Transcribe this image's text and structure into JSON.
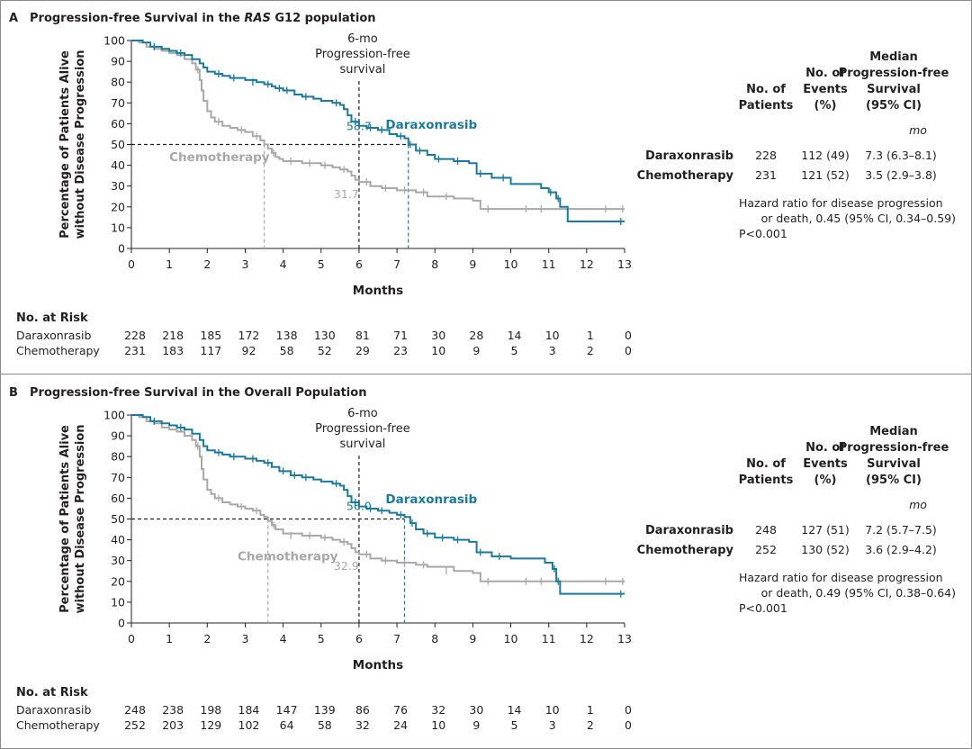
{
  "colors": {
    "daraxonrasib": "#1a7a9e",
    "chemotherapy": "#a8a8a8",
    "reference": "#231f20"
  },
  "chart_data": [
    {
      "type": "line",
      "letter": "A",
      "title_pre": "Progression-free Survival in the ",
      "title_ital": "RAS",
      "title_post": " G12 population",
      "ylabel_line1": "Percentage of Patients Alive",
      "ylabel_line2": "without Disease Progression",
      "xlabel": "Months",
      "xlim": [
        0,
        13
      ],
      "ylim": [
        0,
        100
      ],
      "xticks": [
        "0",
        "1",
        "2",
        "3",
        "4",
        "5",
        "6",
        "7",
        "8",
        "9",
        "10",
        "11",
        "12",
        "13"
      ],
      "yticks": [
        "0",
        "10",
        "20",
        "30",
        "40",
        "50",
        "60",
        "70",
        "80",
        "90",
        "100"
      ],
      "landmark": {
        "line1": "6-mo",
        "line2": "Progression-free",
        "line3": "survival",
        "x": 6
      },
      "series": [
        {
          "name": "Daraxonrasib",
          "color": "#1a7a9e",
          "landmark_label": "58.7",
          "landmark_value": 58.7,
          "median": 7.3,
          "x": [
            0,
            0.3,
            0.5,
            0.8,
            1.0,
            1.2,
            1.4,
            1.6,
            1.8,
            1.9,
            2.0,
            2.2,
            2.4,
            2.6,
            3.0,
            3.3,
            3.5,
            3.7,
            3.8,
            4.0,
            4.3,
            4.5,
            4.8,
            5.0,
            5.3,
            5.5,
            5.6,
            5.7,
            5.8,
            6.0,
            6.2,
            6.5,
            6.8,
            7.0,
            7.2,
            7.3,
            7.5,
            7.8,
            8.0,
            8.5,
            8.9,
            9.1,
            9.5,
            10.0,
            10.8,
            11.0,
            11.2,
            11.3,
            11.5,
            12.0,
            13.0
          ],
          "y": [
            100,
            99,
            97,
            96,
            95,
            94,
            93,
            91,
            89,
            87,
            85,
            84,
            83,
            82,
            81,
            80,
            79,
            78,
            77,
            76,
            74,
            73,
            72,
            71,
            70,
            69,
            67,
            64,
            61,
            59,
            58,
            57,
            55,
            54,
            53,
            50,
            47,
            45,
            43,
            42,
            41,
            36,
            34,
            31,
            29,
            27,
            24,
            20,
            13,
            13,
            13
          ],
          "censored": [
            [
              0.6,
              97
            ],
            [
              1.3,
              94
            ],
            [
              2.3,
              84
            ],
            [
              2.7,
              82
            ],
            [
              3.2,
              80
            ],
            [
              3.6,
              79
            ],
            [
              3.9,
              77
            ],
            [
              4.1,
              76
            ],
            [
              4.6,
              73
            ],
            [
              5.4,
              70
            ],
            [
              5.9,
              61
            ],
            [
              6.3,
              58
            ],
            [
              6.6,
              57
            ],
            [
              7.1,
              54
            ],
            [
              7.35,
              50
            ],
            [
              7.6,
              47
            ],
            [
              8.1,
              43
            ],
            [
              8.6,
              42
            ],
            [
              9.2,
              36
            ],
            [
              9.8,
              34
            ],
            [
              11.05,
              27
            ],
            [
              11.25,
              24
            ],
            [
              12.9,
              13
            ]
          ]
        },
        {
          "name": "Chemotherapy",
          "color": "#a8a8a8",
          "landmark_label": "31.7",
          "landmark_value": 31.7,
          "median": 3.5,
          "x": [
            0,
            0.2,
            0.4,
            0.6,
            0.8,
            1.0,
            1.2,
            1.4,
            1.6,
            1.7,
            1.8,
            1.85,
            1.9,
            2.0,
            2.1,
            2.2,
            2.4,
            2.6,
            2.8,
            3.0,
            3.2,
            3.4,
            3.5,
            3.6,
            3.7,
            3.8,
            3.9,
            4.0,
            4.5,
            5.0,
            5.3,
            5.5,
            5.7,
            5.8,
            5.9,
            6.0,
            6.3,
            6.6,
            7.0,
            7.5,
            7.8,
            8.5,
            9.0,
            9.2,
            9.5,
            10.0,
            11.0,
            12.0,
            13.0
          ],
          "y": [
            100,
            99,
            97,
            96,
            95,
            94,
            93,
            91,
            89,
            86,
            81,
            76,
            71,
            66,
            63,
            61,
            59,
            58,
            57,
            56,
            54,
            52,
            50,
            48,
            46,
            44,
            43,
            42,
            41,
            40,
            39,
            38,
            37,
            35,
            33,
            32,
            30,
            29,
            28,
            27,
            25,
            24,
            23,
            19,
            19,
            19,
            19,
            19,
            19
          ],
          "censored": [
            [
              1.75,
              86
            ],
            [
              2.3,
              61
            ],
            [
              2.9,
              57
            ],
            [
              3.3,
              54
            ],
            [
              3.75,
              46
            ],
            [
              4.2,
              42
            ],
            [
              4.7,
              41
            ],
            [
              5.1,
              40
            ],
            [
              5.6,
              38
            ],
            [
              6.2,
              32
            ],
            [
              6.7,
              29
            ],
            [
              7.2,
              28
            ],
            [
              7.7,
              27
            ],
            [
              8.3,
              25
            ],
            [
              9.4,
              19
            ],
            [
              10.4,
              19
            ],
            [
              10.8,
              19
            ],
            [
              12.5,
              19
            ],
            [
              12.95,
              19
            ]
          ]
        }
      ],
      "risk_header": "No. at Risk",
      "risk": [
        {
          "name": "Daraxonrasib",
          "values": [
            "228",
            "218",
            "185",
            "172",
            "138",
            "130",
            "81",
            "71",
            "30",
            "28",
            "14",
            "10",
            "1",
            "0"
          ]
        },
        {
          "name": "Chemotherapy",
          "values": [
            "231",
            "183",
            "117",
            "92",
            "58",
            "52",
            "29",
            "23",
            "10",
            "9",
            "5",
            "3",
            "2",
            "0"
          ]
        }
      ],
      "table": {
        "col1": [
          "No. of",
          "Patients"
        ],
        "col2": [
          "No. of",
          "Events",
          "(%)"
        ],
        "col3": [
          "Median",
          "Progression-free",
          "Survival",
          "(95% CI)"
        ],
        "unit": "mo",
        "rows": [
          {
            "name": "Daraxonrasib",
            "patients": "228",
            "events": "112 (49)",
            "median": "7.3 (6.3–8.1)"
          },
          {
            "name": "Chemotherapy",
            "patients": "231",
            "events": "121 (52)",
            "median": "3.5 (2.9–3.8)"
          }
        ],
        "hr_line1": "Hazard ratio for disease progression",
        "hr_line2": "or death, 0.45 (95% CI, 0.34–0.59)",
        "p": "P<0.001"
      }
    },
    {
      "type": "line",
      "letter": "B",
      "title_pre": "Progression-free Survival in the Overall Population",
      "title_ital": "",
      "title_post": "",
      "ylabel_line1": "Percentage of Patients Alive",
      "ylabel_line2": "without Disease Progression",
      "xlabel": "Months",
      "xlim": [
        0,
        13
      ],
      "ylim": [
        0,
        100
      ],
      "xticks": [
        "0",
        "1",
        "2",
        "3",
        "4",
        "5",
        "6",
        "7",
        "8",
        "9",
        "10",
        "11",
        "12",
        "13"
      ],
      "yticks": [
        "0",
        "10",
        "20",
        "30",
        "40",
        "50",
        "60",
        "70",
        "80",
        "90",
        "100"
      ],
      "landmark": {
        "line1": "6-mo",
        "line2": "Progression-free",
        "line3": "survival",
        "x": 6
      },
      "series": [
        {
          "name": "Daraxonrasib",
          "color": "#1a7a9e",
          "landmark_label": "56.0",
          "landmark_value": 56.0,
          "median": 7.2,
          "x": [
            0,
            0.3,
            0.5,
            0.8,
            1.0,
            1.2,
            1.4,
            1.6,
            1.8,
            1.9,
            2.0,
            2.2,
            2.4,
            2.6,
            3.0,
            3.3,
            3.5,
            3.7,
            3.9,
            4.2,
            4.5,
            4.8,
            5.0,
            5.3,
            5.5,
            5.6,
            5.7,
            5.8,
            6.0,
            6.2,
            6.5,
            6.8,
            7.0,
            7.2,
            7.35,
            7.5,
            7.7,
            8.0,
            8.5,
            8.9,
            9.1,
            9.5,
            10.0,
            10.9,
            11.1,
            11.2,
            11.3,
            12.0,
            13.0
          ],
          "y": [
            100,
            99,
            97,
            96,
            95,
            94,
            93,
            91,
            88,
            85,
            83,
            82,
            81,
            80,
            79,
            78,
            77,
            75,
            73,
            71,
            70,
            69,
            68,
            67,
            66,
            64,
            61,
            58,
            56,
            55,
            54,
            53,
            52,
            51,
            48,
            45,
            43,
            41,
            40,
            39,
            34,
            32,
            31,
            29,
            26,
            20,
            14,
            14,
            14
          ],
          "censored": [
            [
              0.6,
              97
            ],
            [
              1.3,
              94
            ],
            [
              2.3,
              82
            ],
            [
              2.7,
              80
            ],
            [
              3.2,
              79
            ],
            [
              3.6,
              77
            ],
            [
              4.0,
              73
            ],
            [
              4.3,
              71
            ],
            [
              4.6,
              70
            ],
            [
              5.4,
              67
            ],
            [
              5.9,
              58
            ],
            [
              6.3,
              55
            ],
            [
              6.6,
              54
            ],
            [
              7.1,
              52
            ],
            [
              7.4,
              48
            ],
            [
              7.8,
              43
            ],
            [
              8.2,
              41
            ],
            [
              8.6,
              40
            ],
            [
              9.2,
              34
            ],
            [
              9.7,
              32
            ],
            [
              11.15,
              26
            ],
            [
              11.25,
              20
            ],
            [
              12.9,
              14
            ]
          ]
        },
        {
          "name": "Chemotherapy",
          "color": "#a8a8a8",
          "landmark_label": "32.9",
          "landmark_value": 32.9,
          "median": 3.6,
          "x": [
            0,
            0.2,
            0.4,
            0.6,
            0.8,
            1.0,
            1.2,
            1.4,
            1.6,
            1.7,
            1.8,
            1.85,
            1.9,
            2.0,
            2.1,
            2.2,
            2.4,
            2.6,
            2.8,
            3.0,
            3.2,
            3.4,
            3.5,
            3.6,
            3.7,
            3.8,
            4.0,
            4.5,
            5.0,
            5.3,
            5.5,
            5.7,
            5.8,
            5.9,
            6.0,
            6.3,
            6.6,
            7.0,
            7.5,
            7.8,
            8.5,
            9.0,
            9.2,
            9.5,
            10.0,
            11.0,
            12.0,
            13.0
          ],
          "y": [
            100,
            99,
            97,
            96,
            94,
            93,
            92,
            90,
            88,
            85,
            80,
            74,
            69,
            64,
            62,
            60,
            58,
            57,
            56,
            55,
            54,
            52,
            51,
            49,
            47,
            45,
            43,
            42,
            41,
            40,
            39,
            38,
            36,
            34,
            33,
            31,
            30,
            29,
            28,
            27,
            25,
            24,
            20,
            20,
            20,
            20,
            20,
            20
          ],
          "censored": [
            [
              1.75,
              85
            ],
            [
              2.3,
              60
            ],
            [
              2.9,
              56
            ],
            [
              3.3,
              54
            ],
            [
              3.75,
              47
            ],
            [
              4.2,
              42
            ],
            [
              4.7,
              42
            ],
            [
              5.1,
              41
            ],
            [
              5.6,
              39
            ],
            [
              6.2,
              33
            ],
            [
              6.7,
              30
            ],
            [
              7.2,
              29
            ],
            [
              7.7,
              28
            ],
            [
              8.3,
              25
            ],
            [
              9.4,
              20
            ],
            [
              10.4,
              20
            ],
            [
              10.8,
              20
            ],
            [
              12.5,
              20
            ],
            [
              12.95,
              20
            ]
          ]
        }
      ],
      "risk_header": "No. at Risk",
      "risk": [
        {
          "name": "Daraxonrasib",
          "values": [
            "248",
            "238",
            "198",
            "184",
            "147",
            "139",
            "86",
            "76",
            "32",
            "30",
            "14",
            "10",
            "1",
            "0"
          ]
        },
        {
          "name": "Chemotherapy",
          "values": [
            "252",
            "203",
            "129",
            "102",
            "64",
            "58",
            "32",
            "24",
            "10",
            "9",
            "5",
            "3",
            "2",
            "0"
          ]
        }
      ],
      "table": {
        "col1": [
          "No. of",
          "Patients"
        ],
        "col2": [
          "No. of",
          "Events",
          "(%)"
        ],
        "col3": [
          "Median",
          "Progression-free",
          "Survival",
          "(95% CI)"
        ],
        "unit": "mo",
        "rows": [
          {
            "name": "Daraxonrasib",
            "patients": "248",
            "events": "127 (51)",
            "median": "7.2 (5.7–7.5)"
          },
          {
            "name": "Chemotherapy",
            "patients": "252",
            "events": "130 (52)",
            "median": "3.6 (2.9–4.2)"
          }
        ],
        "hr_line1": "Hazard ratio for disease progression",
        "hr_line2": "or death, 0.49 (95% CI, 0.38–0.64)",
        "p": "P<0.001"
      }
    }
  ]
}
